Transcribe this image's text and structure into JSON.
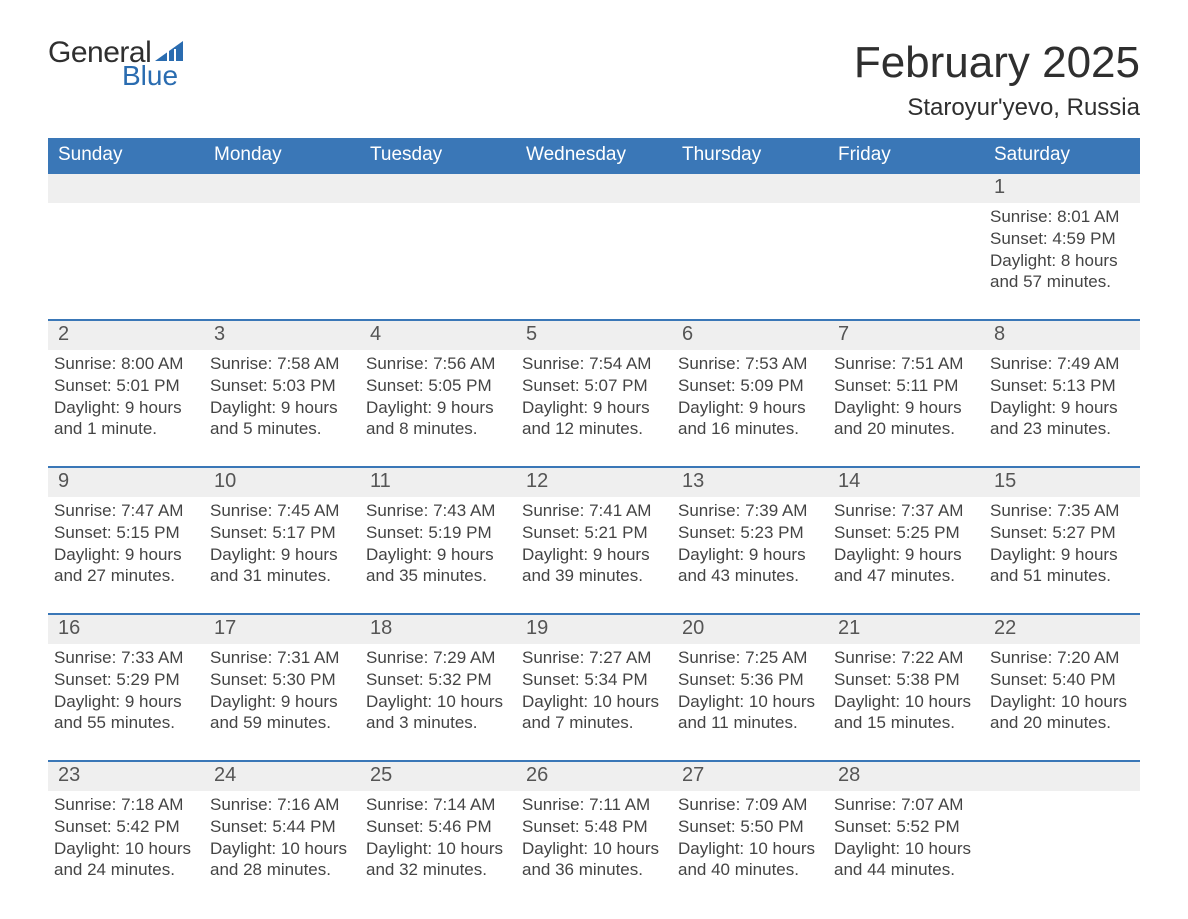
{
  "logo": {
    "word1": "General",
    "word2": "Blue",
    "sail_color": "#2a6cb0"
  },
  "title": "February 2025",
  "location": "Staroyur'yevo, Russia",
  "colors": {
    "header_bg": "#3a77b7",
    "header_text": "#ffffff",
    "row_divider": "#3a77b7",
    "daynum_bg": "#efefef",
    "body_text": "#444444",
    "page_bg": "#ffffff"
  },
  "day_headers": [
    "Sunday",
    "Monday",
    "Tuesday",
    "Wednesday",
    "Thursday",
    "Friday",
    "Saturday"
  ],
  "weeks": [
    [
      null,
      null,
      null,
      null,
      null,
      null,
      {
        "n": "1",
        "sunrise": "8:01 AM",
        "sunset": "4:59 PM",
        "daylight": "8 hours and 57 minutes."
      }
    ],
    [
      {
        "n": "2",
        "sunrise": "8:00 AM",
        "sunset": "5:01 PM",
        "daylight": "9 hours and 1 minute."
      },
      {
        "n": "3",
        "sunrise": "7:58 AM",
        "sunset": "5:03 PM",
        "daylight": "9 hours and 5 minutes."
      },
      {
        "n": "4",
        "sunrise": "7:56 AM",
        "sunset": "5:05 PM",
        "daylight": "9 hours and 8 minutes."
      },
      {
        "n": "5",
        "sunrise": "7:54 AM",
        "sunset": "5:07 PM",
        "daylight": "9 hours and 12 minutes."
      },
      {
        "n": "6",
        "sunrise": "7:53 AM",
        "sunset": "5:09 PM",
        "daylight": "9 hours and 16 minutes."
      },
      {
        "n": "7",
        "sunrise": "7:51 AM",
        "sunset": "5:11 PM",
        "daylight": "9 hours and 20 minutes."
      },
      {
        "n": "8",
        "sunrise": "7:49 AM",
        "sunset": "5:13 PM",
        "daylight": "9 hours and 23 minutes."
      }
    ],
    [
      {
        "n": "9",
        "sunrise": "7:47 AM",
        "sunset": "5:15 PM",
        "daylight": "9 hours and 27 minutes."
      },
      {
        "n": "10",
        "sunrise": "7:45 AM",
        "sunset": "5:17 PM",
        "daylight": "9 hours and 31 minutes."
      },
      {
        "n": "11",
        "sunrise": "7:43 AM",
        "sunset": "5:19 PM",
        "daylight": "9 hours and 35 minutes."
      },
      {
        "n": "12",
        "sunrise": "7:41 AM",
        "sunset": "5:21 PM",
        "daylight": "9 hours and 39 minutes."
      },
      {
        "n": "13",
        "sunrise": "7:39 AM",
        "sunset": "5:23 PM",
        "daylight": "9 hours and 43 minutes."
      },
      {
        "n": "14",
        "sunrise": "7:37 AM",
        "sunset": "5:25 PM",
        "daylight": "9 hours and 47 minutes."
      },
      {
        "n": "15",
        "sunrise": "7:35 AM",
        "sunset": "5:27 PM",
        "daylight": "9 hours and 51 minutes."
      }
    ],
    [
      {
        "n": "16",
        "sunrise": "7:33 AM",
        "sunset": "5:29 PM",
        "daylight": "9 hours and 55 minutes."
      },
      {
        "n": "17",
        "sunrise": "7:31 AM",
        "sunset": "5:30 PM",
        "daylight": "9 hours and 59 minutes."
      },
      {
        "n": "18",
        "sunrise": "7:29 AM",
        "sunset": "5:32 PM",
        "daylight": "10 hours and 3 minutes."
      },
      {
        "n": "19",
        "sunrise": "7:27 AM",
        "sunset": "5:34 PM",
        "daylight": "10 hours and 7 minutes."
      },
      {
        "n": "20",
        "sunrise": "7:25 AM",
        "sunset": "5:36 PM",
        "daylight": "10 hours and 11 minutes."
      },
      {
        "n": "21",
        "sunrise": "7:22 AM",
        "sunset": "5:38 PM",
        "daylight": "10 hours and 15 minutes."
      },
      {
        "n": "22",
        "sunrise": "7:20 AM",
        "sunset": "5:40 PM",
        "daylight": "10 hours and 20 minutes."
      }
    ],
    [
      {
        "n": "23",
        "sunrise": "7:18 AM",
        "sunset": "5:42 PM",
        "daylight": "10 hours and 24 minutes."
      },
      {
        "n": "24",
        "sunrise": "7:16 AM",
        "sunset": "5:44 PM",
        "daylight": "10 hours and 28 minutes."
      },
      {
        "n": "25",
        "sunrise": "7:14 AM",
        "sunset": "5:46 PM",
        "daylight": "10 hours and 32 minutes."
      },
      {
        "n": "26",
        "sunrise": "7:11 AM",
        "sunset": "5:48 PM",
        "daylight": "10 hours and 36 minutes."
      },
      {
        "n": "27",
        "sunrise": "7:09 AM",
        "sunset": "5:50 PM",
        "daylight": "10 hours and 40 minutes."
      },
      {
        "n": "28",
        "sunrise": "7:07 AM",
        "sunset": "5:52 PM",
        "daylight": "10 hours and 44 minutes."
      },
      null
    ]
  ],
  "labels": {
    "sunrise": "Sunrise:",
    "sunset": "Sunset:",
    "daylight": "Daylight:"
  }
}
